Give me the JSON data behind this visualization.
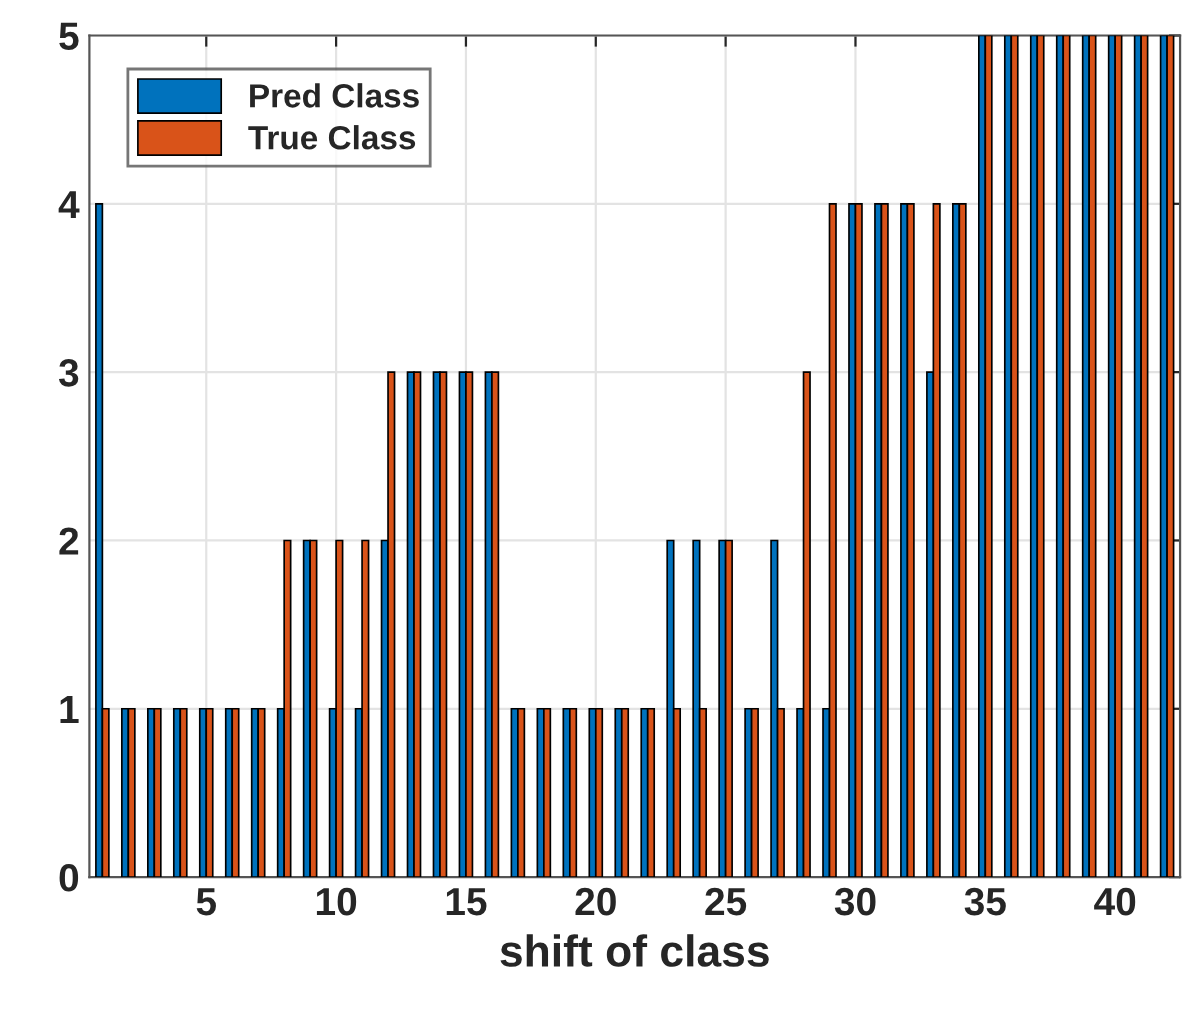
{
  "chart_data": {
    "type": "bar",
    "xlabel": "shift of class",
    "x": [
      1,
      2,
      3,
      4,
      5,
      6,
      7,
      8,
      9,
      10,
      11,
      12,
      13,
      14,
      15,
      16,
      17,
      18,
      19,
      20,
      21,
      22,
      23,
      24,
      25,
      26,
      27,
      28,
      29,
      30,
      31,
      32,
      33,
      34,
      35,
      36,
      37,
      38,
      39,
      40,
      41,
      42
    ],
    "series": [
      {
        "name": "Pred Class",
        "color": "#0072bd",
        "values": [
          4,
          1,
          1,
          1,
          1,
          1,
          1,
          1,
          2,
          1,
          1,
          2,
          3,
          3,
          3,
          3,
          1,
          1,
          1,
          1,
          1,
          1,
          2,
          2,
          2,
          1,
          2,
          1,
          1,
          4,
          4,
          4,
          3,
          4,
          5,
          5,
          5,
          5,
          5,
          5,
          5,
          5
        ]
      },
      {
        "name": "True Class",
        "color": "#d95319",
        "values": [
          1,
          1,
          1,
          1,
          1,
          1,
          1,
          2,
          2,
          2,
          2,
          3,
          3,
          3,
          3,
          3,
          1,
          1,
          1,
          1,
          1,
          1,
          1,
          1,
          2,
          1,
          1,
          3,
          4,
          4,
          4,
          4,
          4,
          4,
          5,
          5,
          5,
          5,
          5,
          5,
          5,
          5
        ]
      }
    ],
    "xlim": [
      0.5,
      42.5
    ],
    "xticks": [
      5,
      10,
      15,
      20,
      25,
      30,
      35,
      40
    ],
    "ylim": [
      0,
      5
    ],
    "yticks": [
      0,
      1,
      2,
      3,
      4,
      5
    ],
    "grid": true,
    "legend": "top left"
  }
}
